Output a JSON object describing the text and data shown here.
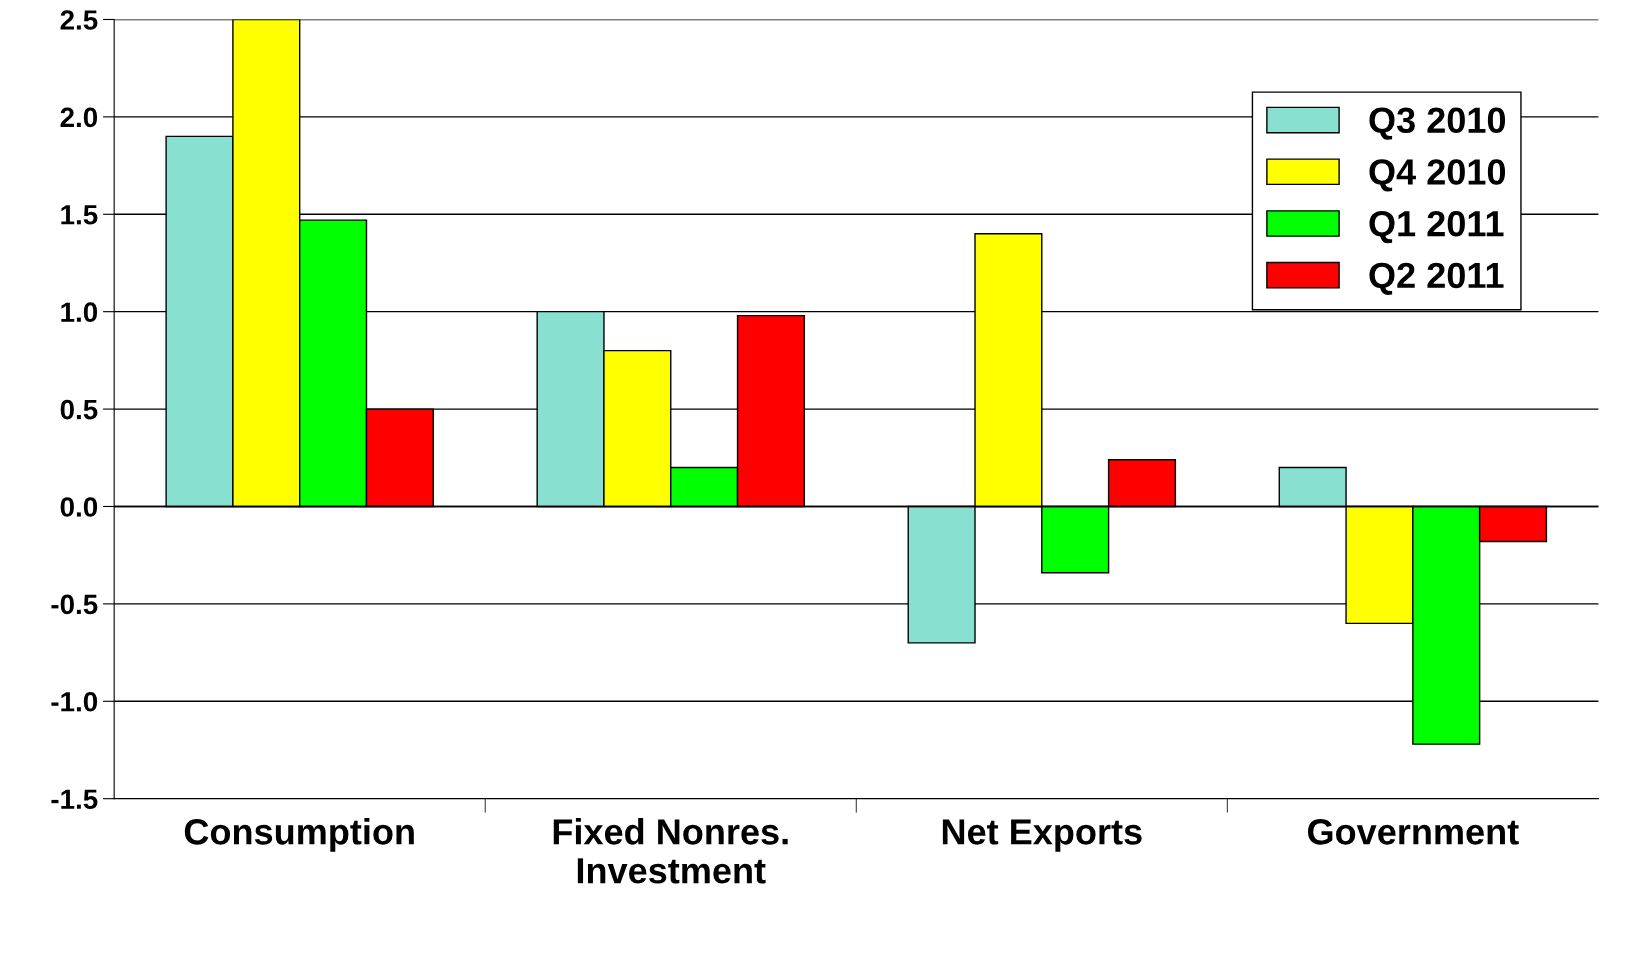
{
  "chart_data": {
    "type": "bar",
    "categories": [
      "Consumption",
      "Fixed Nonres.\nInvestment",
      "Net Exports",
      "Government"
    ],
    "series": [
      {
        "name": "Q3 2010",
        "color": "#88e0d0",
        "values": [
          1.9,
          1.0,
          -0.7,
          0.2
        ]
      },
      {
        "name": "Q4 2010",
        "color": "#ffff00",
        "values": [
          2.5,
          0.8,
          1.4,
          -0.6
        ]
      },
      {
        "name": "Q1 2011",
        "color": "#00ff00",
        "values": [
          1.47,
          0.2,
          -0.34,
          -1.22
        ]
      },
      {
        "name": "Q2 2011",
        "color": "#ff0000",
        "values": [
          0.5,
          0.98,
          0.24,
          -0.18
        ]
      }
    ],
    "ylim": [
      -1.5,
      2.5
    ],
    "yticks": [
      {
        "value": -1.5,
        "label": "-1.5"
      },
      {
        "value": -1.0,
        "label": "-1.0"
      },
      {
        "value": -0.5,
        "label": "-0.5"
      },
      {
        "value": 0,
        "label": "0.0"
      },
      {
        "value": 0.5,
        "label": "0.5"
      },
      {
        "value": 1.0,
        "label": "1.0"
      },
      {
        "value": 1.5,
        "label": "1.5"
      },
      {
        "value": 2.0,
        "label": "2.0"
      },
      {
        "value": 2.5,
        "label": "2.5"
      }
    ],
    "grid": "y",
    "legend": "top right"
  }
}
